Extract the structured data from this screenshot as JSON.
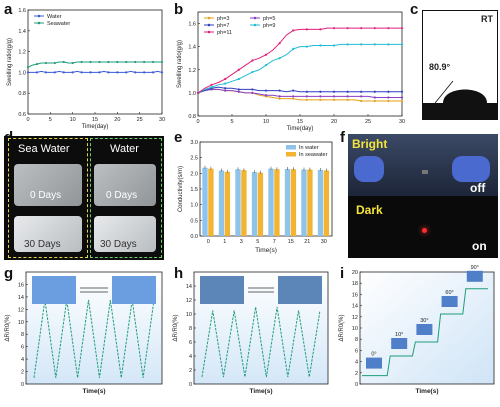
{
  "panels": {
    "a": {
      "label": "a"
    },
    "b": {
      "label": "b"
    },
    "c": {
      "label": "c",
      "temp_label": "RT",
      "angle_label": "80.9°"
    },
    "d": {
      "label": "d",
      "sea_label": "Sea Water",
      "water_label": "Water",
      "day0_left": "0 Days",
      "day0_right": "0 Days",
      "day30_left": "30 Days",
      "day30_right": "30 Days"
    },
    "e": {
      "label": "e"
    },
    "f": {
      "label": "f",
      "bright": "Bright",
      "dark": "Dark",
      "off": "off",
      "on": "on"
    },
    "g": {
      "label": "g"
    },
    "h": {
      "label": "h"
    },
    "i": {
      "label": "i"
    }
  },
  "chart_data": [
    {
      "id": "a",
      "type": "line",
      "xlabel": "Time(day)",
      "ylabel": "Swelling ratio(g/g)",
      "xlim": [
        0,
        30
      ],
      "ylim": [
        0.6,
        1.6
      ],
      "xticks": [
        0,
        5,
        10,
        15,
        20,
        25,
        30
      ],
      "yticks": [
        0.6,
        0.8,
        1.0,
        1.2,
        1.4,
        1.6
      ],
      "legend_position": "top-left",
      "x": [
        0,
        1,
        2,
        3,
        4,
        5,
        6,
        7,
        8,
        9,
        10,
        11,
        12,
        13,
        14,
        15,
        16,
        17,
        18,
        19,
        20,
        21,
        22,
        23,
        24,
        25,
        26,
        27,
        28,
        29,
        30
      ],
      "series": [
        {
          "name": "Water",
          "color": "#3a5bd9",
          "values": [
            1.0,
            1.0,
            1.0,
            1.01,
            1.0,
            1.0,
            1.0,
            1.01,
            1.0,
            1.0,
            1.0,
            1.01,
            1.0,
            1.0,
            1.0,
            1.0,
            1.0,
            1.01,
            1.0,
            1.0,
            1.0,
            1.0,
            1.0,
            1.01,
            1.0,
            1.0,
            1.0,
            1.0,
            1.0,
            1.01,
            1.0
          ]
        },
        {
          "name": "Seawater",
          "color": "#1f9d7a",
          "values": [
            1.05,
            1.07,
            1.08,
            1.09,
            1.09,
            1.09,
            1.09,
            1.1,
            1.1,
            1.09,
            1.09,
            1.1,
            1.1,
            1.1,
            1.1,
            1.1,
            1.1,
            1.1,
            1.1,
            1.1,
            1.1,
            1.1,
            1.1,
            1.1,
            1.1,
            1.1,
            1.1,
            1.1,
            1.1,
            1.1,
            1.1
          ]
        }
      ]
    },
    {
      "id": "b",
      "type": "line",
      "xlabel": "Time(day)",
      "ylabel": "Swelling ratio(g/g)",
      "xlim": [
        0,
        30
      ],
      "ylim": [
        0.8,
        1.7
      ],
      "xticks": [
        0,
        5,
        10,
        15,
        20,
        25,
        30
      ],
      "yticks": [
        0.8,
        1.0,
        1.2,
        1.4,
        1.6
      ],
      "legend_position": "top-left",
      "x": [
        0,
        1,
        2,
        3,
        4,
        5,
        6,
        7,
        8,
        9,
        10,
        11,
        12,
        13,
        14,
        15,
        16,
        17,
        18,
        19,
        20,
        21,
        22,
        23,
        24,
        25,
        26,
        27,
        28,
        29,
        30
      ],
      "series": [
        {
          "name": "ph=3",
          "color": "#e3a21a",
          "values": [
            1.0,
            1.02,
            1.03,
            1.03,
            1.02,
            1.02,
            1.01,
            1.0,
            1.0,
            0.98,
            0.97,
            0.96,
            0.95,
            0.95,
            0.95,
            0.94,
            0.94,
            0.94,
            0.94,
            0.94,
            0.94,
            0.94,
            0.94,
            0.94,
            0.93,
            0.93,
            0.93,
            0.93,
            0.93,
            0.93,
            0.93
          ]
        },
        {
          "name": "ph=5",
          "color": "#8a3fc4",
          "values": [
            1.0,
            1.02,
            1.03,
            1.03,
            1.02,
            1.02,
            1.01,
            1.0,
            1.0,
            0.99,
            0.98,
            0.98,
            0.97,
            0.97,
            0.97,
            0.97,
            0.97,
            0.97,
            0.97,
            0.97,
            0.97,
            0.97,
            0.97,
            0.97,
            0.97,
            0.97,
            0.96,
            0.96,
            0.96,
            0.96,
            0.96
          ]
        },
        {
          "name": "ph=7",
          "color": "#2f3fbf",
          "values": [
            1.0,
            1.02,
            1.04,
            1.05,
            1.04,
            1.04,
            1.03,
            1.03,
            1.03,
            1.02,
            1.02,
            1.02,
            1.02,
            1.01,
            1.02,
            1.01,
            1.01,
            1.01,
            1.01,
            1.01,
            1.01,
            1.01,
            1.01,
            1.01,
            1.01,
            1.01,
            1.01,
            1.01,
            1.01,
            1.01,
            1.01
          ]
        },
        {
          "name": "ph=9",
          "color": "#22bcd6",
          "values": [
            1.0,
            1.03,
            1.05,
            1.07,
            1.08,
            1.1,
            1.12,
            1.15,
            1.18,
            1.2,
            1.24,
            1.28,
            1.3,
            1.33,
            1.38,
            1.4,
            1.4,
            1.41,
            1.41,
            1.41,
            1.41,
            1.42,
            1.42,
            1.42,
            1.42,
            1.42,
            1.42,
            1.42,
            1.42,
            1.42,
            1.42
          ]
        },
        {
          "name": "ph=11",
          "color": "#e0207a",
          "values": [
            1.0,
            1.04,
            1.07,
            1.09,
            1.12,
            1.16,
            1.2,
            1.24,
            1.28,
            1.3,
            1.33,
            1.37,
            1.43,
            1.5,
            1.54,
            1.55,
            1.55,
            1.55,
            1.55,
            1.56,
            1.56,
            1.56,
            1.56,
            1.56,
            1.56,
            1.56,
            1.56,
            1.56,
            1.56,
            1.56,
            1.56
          ]
        }
      ]
    },
    {
      "id": "e",
      "type": "bar",
      "xlabel": "Time(s)",
      "ylabel": "Conductivity(s/m)",
      "ylim": [
        0.0,
        3.0
      ],
      "yticks": [
        0.0,
        0.5,
        1.0,
        1.5,
        2.0,
        2.5,
        3.0
      ],
      "categories": [
        "0",
        "1",
        "3",
        "5",
        "7",
        "15",
        "21",
        "30"
      ],
      "legend_position": "top-right",
      "series": [
        {
          "name": "In water",
          "color": "#8fc3ea",
          "values": [
            2.18,
            2.09,
            2.13,
            2.04,
            2.15,
            2.14,
            2.12,
            2.11
          ]
        },
        {
          "name": "In seawater",
          "color": "#f2b431",
          "values": [
            2.15,
            2.05,
            2.1,
            2.02,
            2.13,
            2.13,
            2.12,
            2.09
          ]
        }
      ]
    },
    {
      "id": "g",
      "type": "line",
      "xlabel": "Time(s)",
      "ylabel": "ΔR/R0(%)",
      "ylim": [
        0,
        18
      ],
      "yticks": [
        0,
        2,
        4,
        6,
        8,
        10,
        12,
        14,
        16
      ],
      "color": "#1f9d7a",
      "x": [
        0,
        1,
        2,
        3,
        4,
        5,
        6,
        7,
        8,
        9,
        10,
        11
      ],
      "values": [
        1,
        13.5,
        1,
        13.5,
        1,
        13.5,
        1,
        13.5,
        1,
        13.5,
        1,
        13.5
      ]
    },
    {
      "id": "h",
      "type": "line",
      "xlabel": "Time(s)",
      "ylabel": "ΔR/R0(%)",
      "ylim": [
        0,
        16
      ],
      "yticks": [
        0,
        2,
        4,
        6,
        8,
        10,
        12,
        14
      ],
      "color": "#1f9d7a",
      "x": [
        0,
        1,
        2,
        3,
        4,
        5,
        6,
        7,
        8,
        9,
        10,
        11
      ],
      "values": [
        1,
        10.5,
        1,
        10.5,
        1,
        11,
        1,
        11,
        1,
        10.5,
        1,
        10.5
      ]
    },
    {
      "id": "i",
      "type": "line",
      "xlabel": "Time(s)",
      "ylabel": "ΔR/R0(%)",
      "ylim": [
        0,
        20
      ],
      "yticks": [
        0,
        2,
        4,
        6,
        8,
        10,
        12,
        14,
        16,
        18,
        20
      ],
      "color": "#1f9d7a",
      "steps": [
        {
          "label": "0°",
          "value": 1.5
        },
        {
          "label": "10°",
          "value": 5
        },
        {
          "label": "30°",
          "value": 7.5
        },
        {
          "label": "60°",
          "value": 12.5
        },
        {
          "label": "90°",
          "value": 17
        }
      ]
    }
  ]
}
